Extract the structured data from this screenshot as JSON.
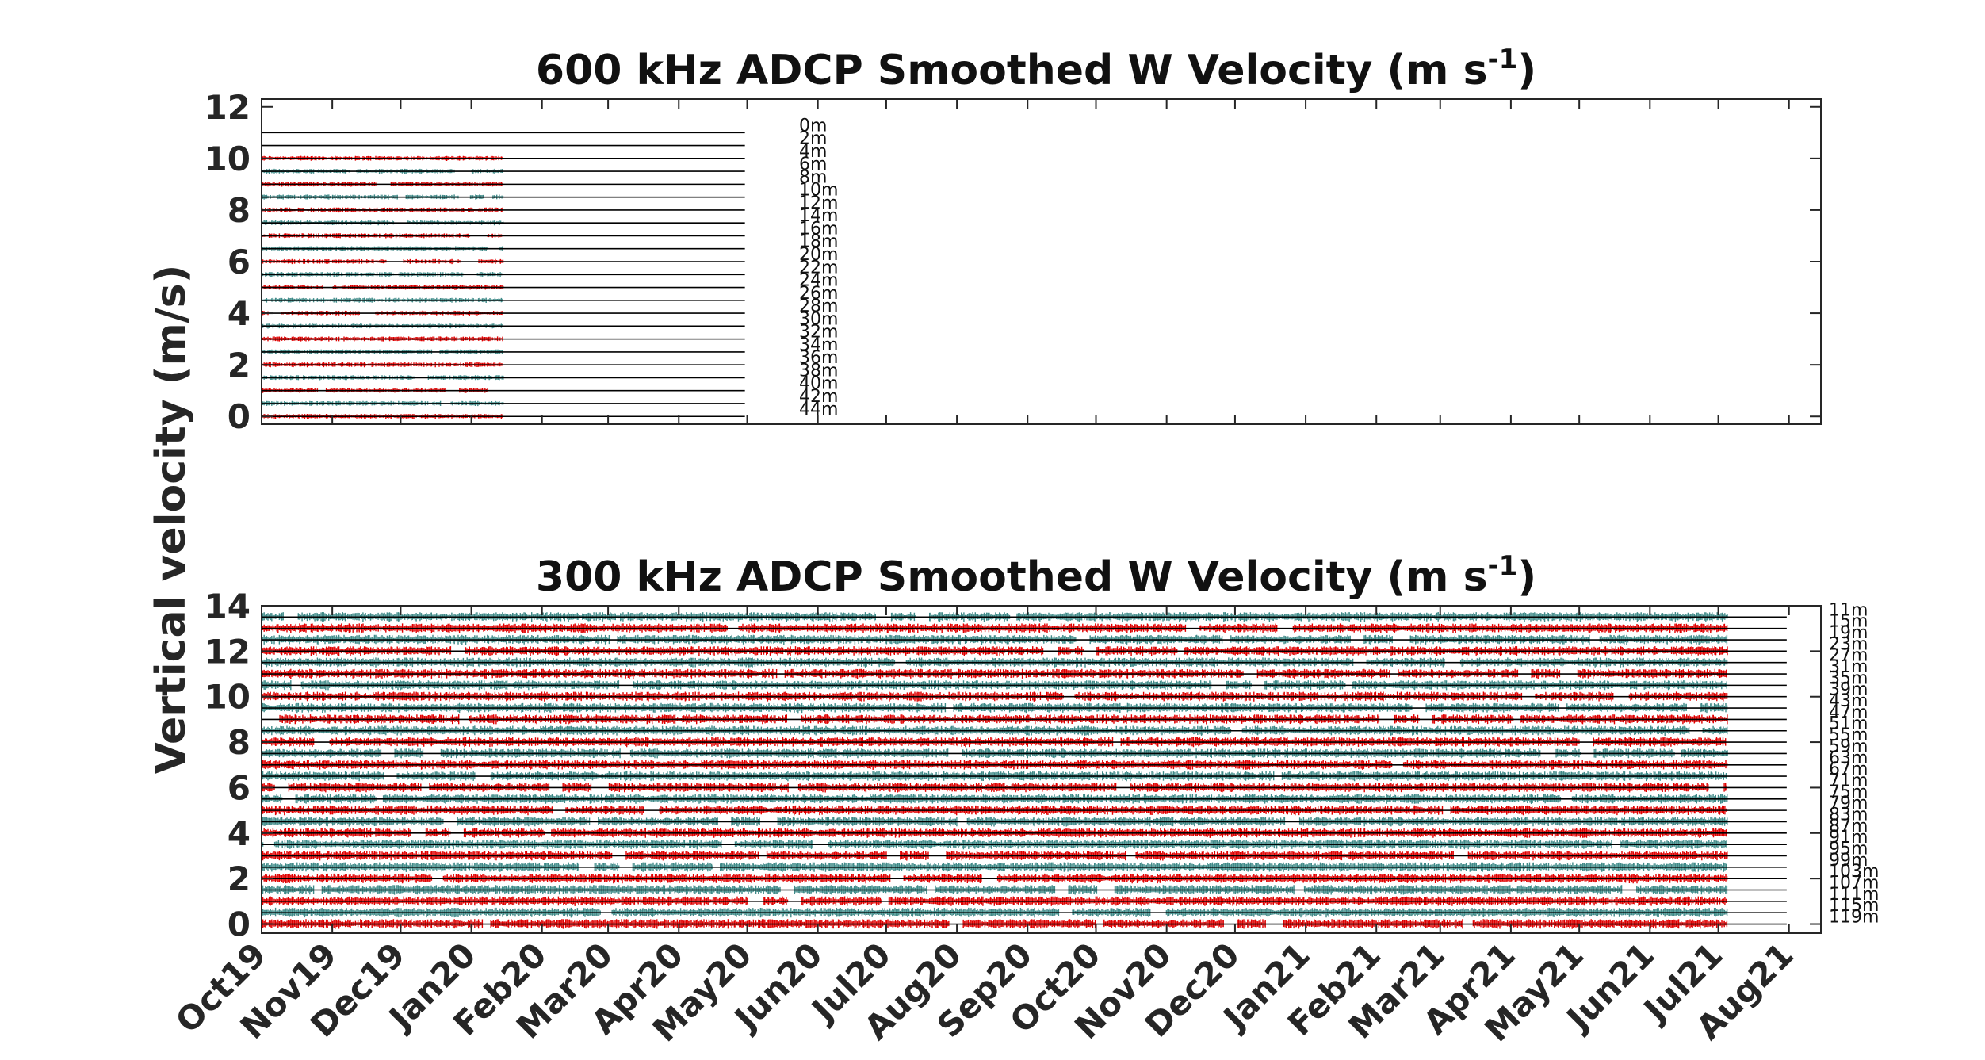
{
  "figure": {
    "ylabel": "Vertical velocity (m/s)"
  },
  "colors": {
    "red_series": "#e00000",
    "teal_series": "#3f8a88",
    "baseline": "#000000",
    "axes": "#262626"
  },
  "chart_data": [
    {
      "type": "line",
      "title": "600 kHz ADCP Smoothed W Velocity  (m s",
      "title_exponent": "-1",
      "title_close": ")",
      "ylabel": "Vertical velocity (m/s)",
      "xlim": [
        "2019-10-01",
        "2021-08-15"
      ],
      "ylim": [
        -0.3,
        12.3
      ],
      "yticks": [
        0,
        2,
        4,
        6,
        8,
        10,
        12
      ],
      "xticklabels_shown": false,
      "depth_labels": [
        "0m",
        "2m",
        "4m",
        "6m",
        "8m",
        "10m",
        "12m",
        "14m",
        "16m",
        "18m",
        "20m",
        "22m",
        "24m",
        "26m",
        "28m",
        "30m",
        "32m",
        "34m",
        "36m",
        "38m",
        "40m",
        "42m",
        "44m"
      ],
      "depth_label_offsets": [
        11,
        10.5,
        10,
        9.5,
        9,
        8.5,
        8,
        7.5,
        7,
        6.5,
        6,
        5.5,
        5,
        4.5,
        4,
        3.5,
        3,
        2.5,
        2,
        1.5,
        1,
        0.5,
        0
      ],
      "baseline_range": [
        "2019-10-01",
        "2020-04-30"
      ],
      "record_range": [
        "2019-10-01",
        "2020-01-15"
      ],
      "empty_bins": [
        "0m",
        "2m"
      ],
      "series_colors_alternate": [
        "red",
        "teal"
      ]
    },
    {
      "type": "line",
      "title": "300 kHz ADCP Smoothed W Velocity  (m s",
      "title_exponent": "-1",
      "title_close": ")",
      "ylabel": "Vertical velocity (m/s)",
      "xlim": [
        "2019-10-01",
        "2021-08-15"
      ],
      "ylim": [
        -0.4,
        14.0
      ],
      "yticks": [
        0,
        2,
        4,
        6,
        8,
        10,
        12,
        14
      ],
      "xticklabels": [
        "Oct19",
        "Nov19",
        "Dec19",
        "Jan20",
        "Feb20",
        "Mar20",
        "Apr20",
        "May20",
        "Jun20",
        "Jul20",
        "Aug20",
        "Sep20",
        "Oct20",
        "Nov20",
        "Dec20",
        "Jan21",
        "Feb21",
        "Mar21",
        "Apr21",
        "May21",
        "Jun21",
        "Jul21",
        "Aug21"
      ],
      "xtick_dates": [
        "2019-10-01",
        "2019-11-01",
        "2019-12-01",
        "2020-01-01",
        "2020-02-01",
        "2020-03-01",
        "2020-04-01",
        "2020-05-01",
        "2020-06-01",
        "2020-07-01",
        "2020-08-01",
        "2020-09-01",
        "2020-10-01",
        "2020-11-01",
        "2020-12-01",
        "2021-01-01",
        "2021-02-01",
        "2021-03-01",
        "2021-04-01",
        "2021-05-01",
        "2021-06-01",
        "2021-07-01",
        "2021-08-01"
      ],
      "depth_labels": [
        "11m",
        "15m",
        "19m",
        "23m",
        "27m",
        "31m",
        "35m",
        "39m",
        "43m",
        "47m",
        "51m",
        "55m",
        "59m",
        "63m",
        "67m",
        "71m",
        "75m",
        "79m",
        "83m",
        "87m",
        "91m",
        "95m",
        "99m",
        "103m",
        "107m",
        "111m",
        "115m",
        "119m"
      ],
      "depth_label_offsets": [
        13.5,
        13,
        12.5,
        12,
        11.5,
        11,
        10.5,
        10,
        9.5,
        9,
        8.5,
        8,
        7.5,
        7,
        6.5,
        6,
        5.5,
        5,
        4.5,
        4,
        3.5,
        3,
        2.5,
        2,
        1.5,
        1,
        0.5,
        0
      ],
      "baseline_range": [
        "2019-10-01",
        "2021-07-31"
      ],
      "record_range": [
        "2019-10-01",
        "2021-07-05"
      ],
      "series_colors_alternate": [
        "teal",
        "red"
      ]
    }
  ]
}
